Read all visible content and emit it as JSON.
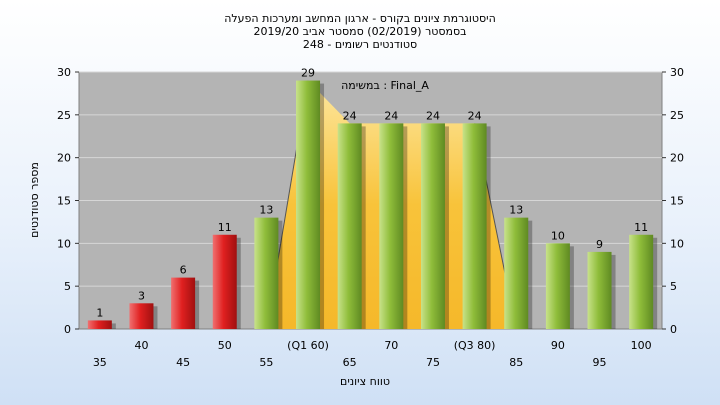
{
  "titles": {
    "line1": "היסטוגרמת ציונים בקורס - ארגון המחשב ומערכות הפעלה",
    "line2": "בסמסטר  (02/2019)  סמסטר אביב 2019/20",
    "line3": "סטודנטים רשומים - 248"
  },
  "annotation": "במשימה : Final_A",
  "chart_data": {
    "type": "bar",
    "title": "היסטוגרמת ציונים בקורס - ארגון המחשב ומערכות הפעלה",
    "xlabel": "טווח ציונים",
    "ylabel": "מספר סטודנטים",
    "ylim": [
      0,
      30
    ],
    "yticks": [
      0,
      5,
      10,
      15,
      20,
      25,
      30
    ],
    "grid": true,
    "categories": [
      "35",
      "40",
      "45",
      "50",
      "55",
      "(Q1 60)",
      "65",
      "70",
      "75",
      "(Q3 80)",
      "85",
      "90",
      "95",
      "100"
    ],
    "values": [
      1,
      3,
      6,
      11,
      13,
      29,
      24,
      24,
      24,
      24,
      13,
      10,
      9,
      11
    ],
    "colors": [
      "#e02020",
      "#e02020",
      "#e02020",
      "#e02020",
      "#8fbd3a",
      "#8fbd3a",
      "#8fbd3a",
      "#8fbd3a",
      "#8fbd3a",
      "#8fbd3a",
      "#8fbd3a",
      "#8fbd3a",
      "#8fbd3a",
      "#8fbd3a"
    ],
    "highlight_range": [
      "(Q1 60)",
      "(Q3 80)"
    ],
    "highlight_color": "#f8c33a",
    "plot_background": "#b4b4b4"
  }
}
